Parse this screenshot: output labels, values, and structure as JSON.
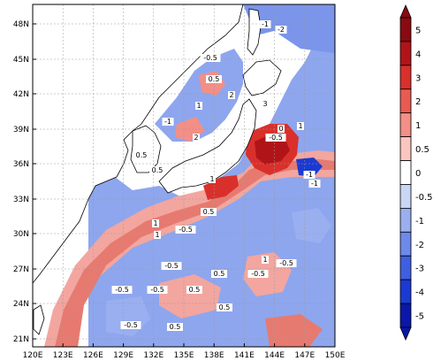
{
  "map": {
    "lat_ticks": [
      "48N",
      "45N",
      "42N",
      "39N",
      "36N",
      "33N",
      "30N",
      "27N",
      "24N",
      "21N"
    ],
    "lon_ticks": [
      "120E",
      "123E",
      "126E",
      "129E",
      "132E",
      "135E",
      "138E",
      "141E",
      "144E",
      "147E",
      "150E"
    ],
    "contour_labels": [
      "-1",
      "-2",
      "-0.5",
      "0.5",
      "1",
      "2",
      "3",
      "0",
      "-0.5",
      "1",
      "0.5",
      "-1",
      "2",
      "1",
      "-0.5",
      "0.5",
      "1",
      "-0.5",
      "0.5",
      "1",
      "-0.5",
      "0.5",
      "-0.5",
      "0.5",
      "-0.5",
      "0.5",
      "-1",
      "-0.5",
      "-0.5",
      "-1",
      "0.5",
      "1"
    ],
    "colors": {
      "land": "#ffffff",
      "coast": "#000000",
      "grid": "#9a9a9a"
    }
  },
  "colorbar": {
    "labels": [
      "5",
      "4",
      "3",
      "2",
      "1",
      "0.5",
      "0",
      "-0.5",
      "-1",
      "-2",
      "-3",
      "-4",
      "-5"
    ],
    "colors": [
      "#8a0a12",
      "#b01419",
      "#d9302b",
      "#e85b52",
      "#f38f86",
      "#fac6bf",
      "#ffffff",
      "#c9d7f5",
      "#9aaff0",
      "#6d89ea",
      "#3f5fe0",
      "#1b3ad2",
      "#0a17a8"
    ]
  }
}
